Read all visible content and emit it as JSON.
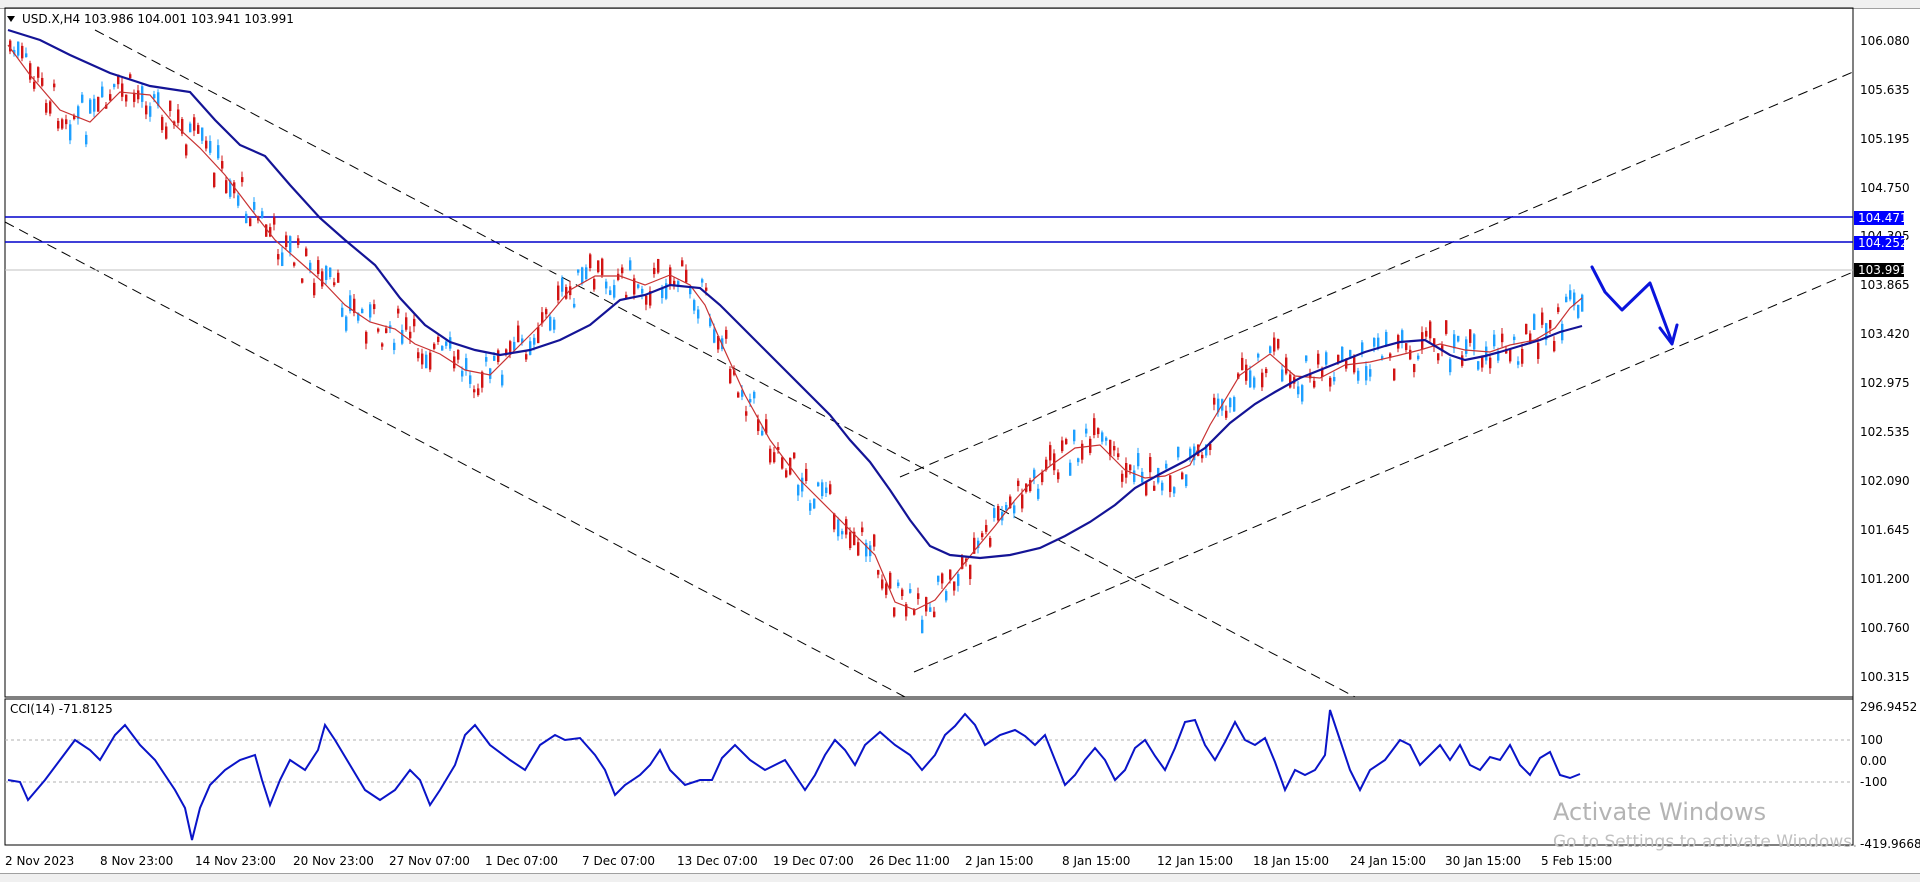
{
  "main_chart": {
    "symbol_info": "USD.X,H4  103.986 104.001 103.941 103.991",
    "price_ticks": [
      "106.080",
      "105.635",
      "105.195",
      "104.750",
      "104.305",
      "103.865",
      "103.420",
      "102.975",
      "102.535",
      "102.090",
      "101.645",
      "101.200",
      "100.760",
      "100.315"
    ],
    "price_tags": [
      {
        "text": "104.471",
        "bg": "#0000ff",
        "fg": "#ffffff"
      },
      {
        "text": "104.252",
        "bg": "#0000ff",
        "fg": "#ffffff"
      },
      {
        "text": "103.991",
        "bg": "#000000",
        "fg": "#ffffff"
      }
    ],
    "colors": {
      "bull": "#1ea0ff",
      "bear": "#d21414",
      "ma_slow": "#141496",
      "ma_fast": "#c83232",
      "levels": "#0000cc",
      "arrow": "#0a14dc"
    }
  },
  "indicator": {
    "label": "CCI(14) -71.8125",
    "ticks": [
      "296.9452",
      "100",
      "0.00",
      "-100",
      "-419.9668"
    ],
    "line_color": "#0a14c8"
  },
  "time_axis": [
    "2 Nov 2023",
    "8 Nov 23:00",
    "14 Nov 23:00",
    "20 Nov 23:00",
    "27 Nov 07:00",
    "1 Dec 07:00",
    "7 Dec 07:00",
    "13 Dec 07:00",
    "19 Dec 07:00",
    "26 Dec 11:00",
    "2 Jan 15:00",
    "8 Jan 15:00",
    "12 Jan 15:00",
    "18 Jan 15:00",
    "24 Jan 15:00",
    "30 Jan 15:00",
    "5 Feb 15:00"
  ],
  "watermark": {
    "title": "Activate Windows",
    "subtitle": "Go to Settings to activate Windows."
  }
}
